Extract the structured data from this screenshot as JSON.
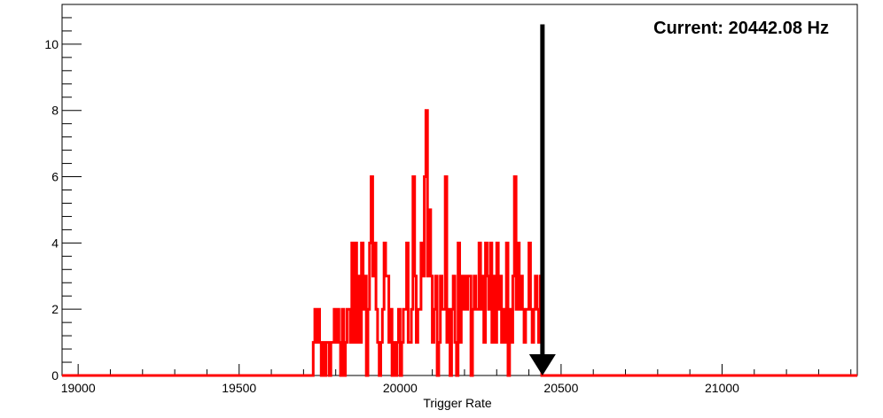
{
  "chart_data": {
    "type": "histogram",
    "title": "",
    "xlabel": "Trigger Rate",
    "ylabel": "",
    "xlim": [
      18950,
      21420
    ],
    "ylim": [
      0,
      11.2
    ],
    "x_ticks": [
      19000,
      19500,
      20000,
      20500,
      21000
    ],
    "y_ticks": [
      0,
      2,
      4,
      6,
      8,
      10
    ],
    "bin_width": 5,
    "grid": false,
    "legend": "none",
    "line_color": "#ff0000",
    "bins": [
      [
        19730,
        1
      ],
      [
        19735,
        2
      ],
      [
        19740,
        1
      ],
      [
        19745,
        2
      ],
      [
        19750,
        1
      ],
      [
        19755,
        0
      ],
      [
        19760,
        1
      ],
      [
        19765,
        0
      ],
      [
        19770,
        1
      ],
      [
        19775,
        1
      ],
      [
        19780,
        0
      ],
      [
        19785,
        1
      ],
      [
        19790,
        1
      ],
      [
        19795,
        2
      ],
      [
        19800,
        1
      ],
      [
        19805,
        2
      ],
      [
        19810,
        1
      ],
      [
        19815,
        0
      ],
      [
        19820,
        2
      ],
      [
        19825,
        0
      ],
      [
        19830,
        1
      ],
      [
        19835,
        2
      ],
      [
        19840,
        2
      ],
      [
        19845,
        1
      ],
      [
        19850,
        4
      ],
      [
        19855,
        1
      ],
      [
        19860,
        4
      ],
      [
        19865,
        1
      ],
      [
        19870,
        3
      ],
      [
        19875,
        1
      ],
      [
        19880,
        4
      ],
      [
        19885,
        2
      ],
      [
        19890,
        3
      ],
      [
        19895,
        0
      ],
      [
        19900,
        2
      ],
      [
        19905,
        4
      ],
      [
        19910,
        6
      ],
      [
        19915,
        3
      ],
      [
        19920,
        4
      ],
      [
        19925,
        2
      ],
      [
        19930,
        1
      ],
      [
        19935,
        0
      ],
      [
        19940,
        1
      ],
      [
        19945,
        2
      ],
      [
        19950,
        4
      ],
      [
        19955,
        3
      ],
      [
        19960,
        3
      ],
      [
        19965,
        1
      ],
      [
        19970,
        2
      ],
      [
        19975,
        0
      ],
      [
        19980,
        1
      ],
      [
        19985,
        0
      ],
      [
        19990,
        1
      ],
      [
        19995,
        2
      ],
      [
        20000,
        0
      ],
      [
        20005,
        1
      ],
      [
        20010,
        2
      ],
      [
        20015,
        2
      ],
      [
        20020,
        4
      ],
      [
        20025,
        1
      ],
      [
        20030,
        1
      ],
      [
        20035,
        2
      ],
      [
        20040,
        6
      ],
      [
        20045,
        3
      ],
      [
        20050,
        1
      ],
      [
        20055,
        2
      ],
      [
        20060,
        2
      ],
      [
        20065,
        4
      ],
      [
        20070,
        3
      ],
      [
        20075,
        6
      ],
      [
        20080,
        8
      ],
      [
        20085,
        3
      ],
      [
        20090,
        5
      ],
      [
        20095,
        3
      ],
      [
        20100,
        1
      ],
      [
        20105,
        2
      ],
      [
        20110,
        3
      ],
      [
        20115,
        0
      ],
      [
        20120,
        1
      ],
      [
        20125,
        3
      ],
      [
        20130,
        2
      ],
      [
        20135,
        2
      ],
      [
        20140,
        6
      ],
      [
        20145,
        1
      ],
      [
        20150,
        2
      ],
      [
        20155,
        0
      ],
      [
        20160,
        2
      ],
      [
        20165,
        3
      ],
      [
        20170,
        1
      ],
      [
        20175,
        0
      ],
      [
        20180,
        4
      ],
      [
        20185,
        1
      ],
      [
        20190,
        3
      ],
      [
        20195,
        2
      ],
      [
        20200,
        3
      ],
      [
        20205,
        2
      ],
      [
        20210,
        3
      ],
      [
        20215,
        3
      ],
      [
        20220,
        0
      ],
      [
        20225,
        2
      ],
      [
        20230,
        3
      ],
      [
        20235,
        2
      ],
      [
        20240,
        2
      ],
      [
        20245,
        4
      ],
      [
        20250,
        2
      ],
      [
        20255,
        3
      ],
      [
        20260,
        1
      ],
      [
        20265,
        4
      ],
      [
        20270,
        3
      ],
      [
        20275,
        2
      ],
      [
        20280,
        4
      ],
      [
        20285,
        1
      ],
      [
        20290,
        3
      ],
      [
        20295,
        1
      ],
      [
        20300,
        4
      ],
      [
        20305,
        2
      ],
      [
        20310,
        3
      ],
      [
        20315,
        1
      ],
      [
        20320,
        2
      ],
      [
        20325,
        1
      ],
      [
        20330,
        4
      ],
      [
        20335,
        0
      ],
      [
        20340,
        2
      ],
      [
        20345,
        1
      ],
      [
        20350,
        3
      ],
      [
        20355,
        6
      ],
      [
        20360,
        2
      ],
      [
        20365,
        4
      ],
      [
        20370,
        2
      ],
      [
        20375,
        3
      ],
      [
        20380,
        2
      ],
      [
        20385,
        1
      ],
      [
        20390,
        2
      ],
      [
        20395,
        2
      ],
      [
        20400,
        4
      ],
      [
        20405,
        2
      ],
      [
        20410,
        1
      ],
      [
        20415,
        2
      ],
      [
        20420,
        3
      ],
      [
        20425,
        2
      ],
      [
        20430,
        1
      ],
      [
        20435,
        3
      ]
    ],
    "annotations": [
      {
        "type": "text",
        "text": "Current: 20442.08 Hz",
        "position": "top-right"
      },
      {
        "type": "arrow",
        "x": 20442.08,
        "direction": "down",
        "from_y": 10.6,
        "to_y": 0
      }
    ]
  }
}
